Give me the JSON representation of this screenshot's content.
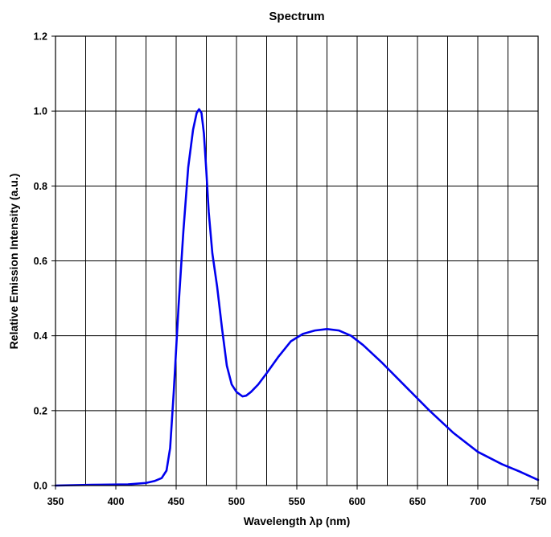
{
  "chart_data": {
    "type": "line",
    "title": "Spectrum",
    "xlabel": "Wavelength λp (nm)",
    "ylabel": "Relative Emission Intensity (a.u.)",
    "xlim": [
      350,
      750
    ],
    "ylim": [
      0,
      1.2
    ],
    "xticks": [
      "350",
      "400",
      "450",
      "500",
      "550",
      "600",
      "650",
      "700",
      "750"
    ],
    "yticks": [
      "0.0",
      "0.2",
      "0.4",
      "0.6",
      "0.8",
      "1.0",
      "1.2"
    ],
    "grid": true,
    "vertical_gridline_step": 25,
    "series": [
      {
        "color": "#0000ee",
        "x": [
          350,
          380,
          410,
          425,
          432,
          438,
          442,
          445,
          448,
          452,
          456,
          460,
          464,
          467,
          469,
          471,
          473,
          475,
          477,
          480,
          484,
          488,
          492,
          496,
          500,
          505,
          508,
          512,
          518,
          525,
          535,
          545,
          555,
          565,
          575,
          585,
          595,
          605,
          620,
          640,
          660,
          680,
          700,
          720,
          735,
          750
        ],
        "y": [
          0.0,
          0.002,
          0.003,
          0.007,
          0.012,
          0.02,
          0.04,
          0.1,
          0.25,
          0.48,
          0.68,
          0.85,
          0.95,
          0.995,
          1.005,
          0.995,
          0.94,
          0.84,
          0.73,
          0.62,
          0.53,
          0.42,
          0.32,
          0.27,
          0.25,
          0.238,
          0.24,
          0.25,
          0.27,
          0.3,
          0.345,
          0.385,
          0.405,
          0.414,
          0.418,
          0.414,
          0.4,
          0.375,
          0.33,
          0.265,
          0.2,
          0.14,
          0.09,
          0.057,
          0.037,
          0.015
        ]
      }
    ]
  }
}
